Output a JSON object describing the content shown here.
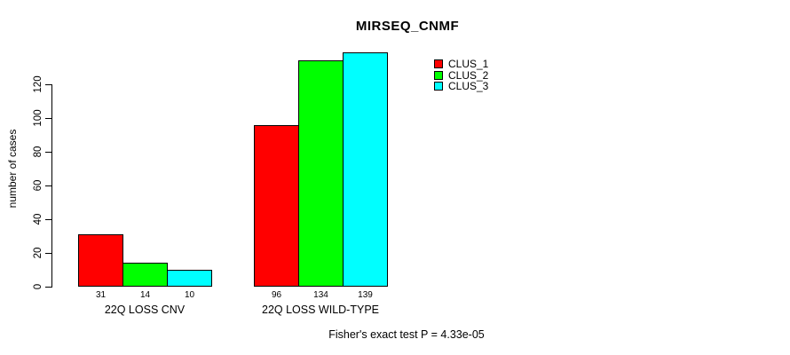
{
  "chart_data": {
    "type": "bar",
    "title": "MIRSEQ_CNMF",
    "xlabel": "",
    "ylabel": "number of cases",
    "categories": [
      "22Q LOSS CNV",
      "22Q LOSS WILD-TYPE"
    ],
    "series": [
      {
        "name": "CLUS_1",
        "color": "#ff0000",
        "values": [
          31,
          96
        ]
      },
      {
        "name": "CLUS_2",
        "color": "#00ff00",
        "values": [
          14,
          134
        ]
      },
      {
        "name": "CLUS_3",
        "color": "#00ffff",
        "values": [
          10,
          139
        ]
      }
    ],
    "yticks": [
      0,
      20,
      40,
      60,
      80,
      100,
      120
    ],
    "ylim": [
      0,
      140
    ],
    "grid": false,
    "bar_borders": "#000000",
    "bar_value_labels_shown": true,
    "legend": {
      "position": "top-right-inner",
      "entries": [
        "CLUS_1",
        "CLUS_2",
        "CLUS_3"
      ]
    },
    "annotation": "Fisher's exact test P = 4.33e-05"
  }
}
